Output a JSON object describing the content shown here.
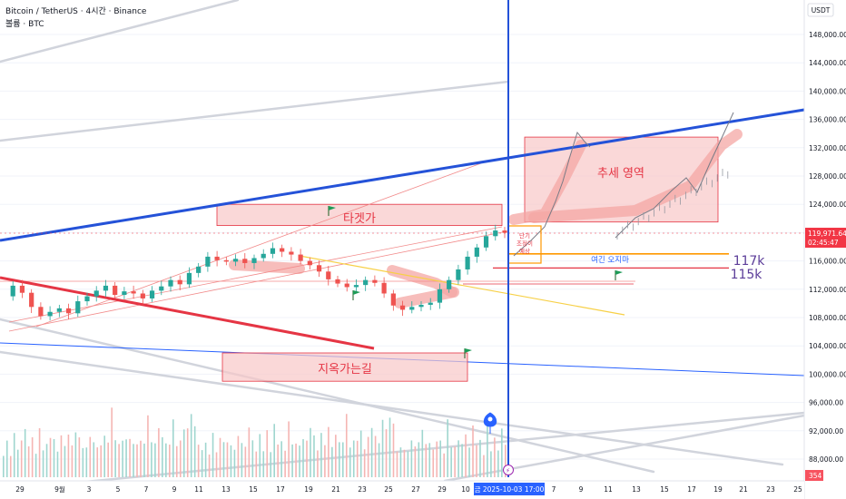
{
  "legend": {
    "symbol": "Bitcoin / TetherUS · 4시간 · Binance",
    "volume": "볼륨 · BTC"
  },
  "axis": {
    "currency": "USDT",
    "price_ticks": [
      "148,000.00",
      "144,000.00",
      "140,000.00",
      "136,000.00",
      "132,000.00",
      "128,000.00",
      "124,000.00",
      "120,000.00",
      "116,000.00",
      "112,000.00",
      "108,000.00",
      "104,000.00",
      "100,000.00",
      "96,000.00",
      "92,000.00",
      "88,000.00"
    ],
    "date_ticks": [
      "29",
      "9월",
      "3",
      "5",
      "7",
      "9",
      "11",
      "13",
      "15",
      "17",
      "19",
      "21",
      "23",
      "25",
      "27",
      "29",
      "10",
      "13",
      "15",
      "17",
      "19",
      "21",
      "23",
      "25"
    ],
    "date_ticks_right": [
      "7",
      "9",
      "11",
      "13",
      "15",
      "17",
      "19",
      "21",
      "23",
      "25"
    ],
    "crosshair_date": "금 2025-10-03  17:00"
  },
  "price_badge": {
    "value": "119,971.64",
    "countdown": "02:45:47",
    "volume_badge": "354",
    "color": "#f23645"
  },
  "annotations": {
    "target": "타겟가",
    "hell": "지옥가는길",
    "trend_zone": "추세 영역",
    "dont_come": "여긴 오지마",
    "short_term": "단기\n조정이\n예상",
    "level_117": "117k",
    "level_115": "115k"
  },
  "colors": {
    "up": "#26a69a",
    "down": "#ef5350",
    "blue": "#2452d8",
    "red": "#e53544",
    "zone_fill": "#f8c8c8",
    "orange": "#ff9800",
    "purple": "#5c3d99"
  },
  "chart_data": {
    "type": "candlestick",
    "ylim": [
      84000,
      152000
    ],
    "y_ticks": [
      148000,
      144000,
      140000,
      136000,
      132000,
      128000,
      124000,
      120000,
      116000,
      112000,
      108000,
      104000,
      100000,
      96000,
      92000,
      88000
    ],
    "last_price": 119971.64,
    "close_path": [
      [
        0,
        111000
      ],
      [
        1,
        112500
      ],
      [
        2,
        111500
      ],
      [
        3,
        109500
      ],
      [
        4,
        108200
      ],
      [
        5,
        108800
      ],
      [
        6,
        109300
      ],
      [
        7,
        108600
      ],
      [
        8,
        110300
      ],
      [
        9,
        111000
      ],
      [
        10,
        111800
      ],
      [
        11,
        112500
      ],
      [
        12,
        111200
      ],
      [
        13,
        111700
      ],
      [
        14,
        111400
      ],
      [
        15,
        110700
      ],
      [
        16,
        111800
      ],
      [
        17,
        112400
      ],
      [
        18,
        113300
      ],
      [
        19,
        112700
      ],
      [
        20,
        114300
      ],
      [
        21,
        115200
      ],
      [
        22,
        116600
      ],
      [
        23,
        116100
      ],
      [
        24,
        115900
      ],
      [
        25,
        116300
      ],
      [
        26,
        115700
      ],
      [
        27,
        116400
      ],
      [
        28,
        117000
      ],
      [
        29,
        117800
      ],
      [
        30,
        117300
      ],
      [
        31,
        116900
      ],
      [
        32,
        116000
      ],
      [
        33,
        115400
      ],
      [
        34,
        114500
      ],
      [
        35,
        113400
      ],
      [
        36,
        112800
      ],
      [
        37,
        112300
      ],
      [
        38,
        112600
      ],
      [
        39,
        113300
      ],
      [
        40,
        112900
      ],
      [
        41,
        111400
      ],
      [
        42,
        109700
      ],
      [
        43,
        109100
      ],
      [
        44,
        109500
      ],
      [
        45,
        109800
      ],
      [
        46,
        110100
      ],
      [
        47,
        112000
      ],
      [
        48,
        113300
      ],
      [
        49,
        114800
      ],
      [
        50,
        116600
      ],
      [
        51,
        117900
      ],
      [
        52,
        119500
      ],
      [
        53,
        120300
      ],
      [
        54,
        119971.64
      ]
    ],
    "volume_levels": [
      0.22,
      0.3,
      0.18,
      0.4,
      0.25,
      0.33,
      0.5,
      0.28,
      0.36,
      0.2,
      0.45,
      0.3,
      0.26,
      0.55,
      0.32,
      0.24,
      0.38,
      0.29,
      0.42,
      0.27,
      0.5,
      0.35,
      0.31,
      0.22,
      0.6,
      0.28,
      0.34,
      0.25,
      0.47,
      0.3,
      0.8,
      0.36,
      0.28,
      0.4,
      0.32,
      0.5,
      0.26,
      0.44,
      0.3,
      0.38,
      0.62,
      0.35,
      0.3,
      0.5,
      0.42,
      0.28,
      0.36,
      0.55,
      0.4,
      0.3,
      0.68,
      0.45,
      0.82,
      0.5,
      0.3
    ],
    "levels": {
      "k117": 117000,
      "k115": 115000
    },
    "trend_zone": {
      "low": 121500,
      "high": 133500
    },
    "target_zone": {
      "low": 121000,
      "high": 124000
    },
    "hell_zone": {
      "low": 99000,
      "high": 103000
    }
  }
}
